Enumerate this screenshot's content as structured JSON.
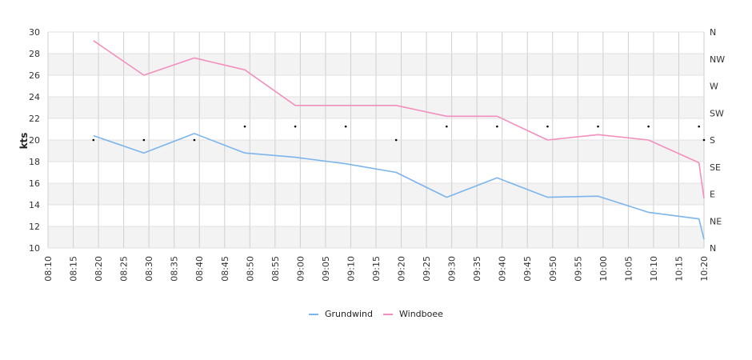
{
  "chart_data": {
    "type": "line",
    "ylabel": "kts",
    "ylim": [
      10,
      30
    ],
    "yticks": [
      10,
      12,
      14,
      16,
      18,
      20,
      22,
      24,
      26,
      28,
      30
    ],
    "xticks": [
      "08:10",
      "08:15",
      "08:20",
      "08:25",
      "08:30",
      "08:35",
      "08:40",
      "08:45",
      "08:50",
      "08:55",
      "09:00",
      "09:05",
      "09:10",
      "09:15",
      "09:20",
      "09:25",
      "09:30",
      "09:35",
      "09:40",
      "09:45",
      "09:50",
      "09:55",
      "10:00",
      "10:05",
      "10:10",
      "10:15",
      "10:20"
    ],
    "direction_axis": {
      "labels": [
        "N",
        "NE",
        "E",
        "SE",
        "S",
        "SW",
        "W",
        "NW",
        "N"
      ],
      "points": [
        {
          "time": "08:19",
          "dir": "S"
        },
        {
          "time": "08:29",
          "dir": "S"
        },
        {
          "time": "08:39",
          "dir": "S"
        },
        {
          "time": "08:49",
          "dir": "SSW"
        },
        {
          "time": "08:59",
          "dir": "SSW"
        },
        {
          "time": "09:09",
          "dir": "SSW"
        },
        {
          "time": "09:19",
          "dir": "S"
        },
        {
          "time": "09:29",
          "dir": "SSW"
        },
        {
          "time": "09:39",
          "dir": "SSW"
        },
        {
          "time": "09:49",
          "dir": "SSW"
        },
        {
          "time": "09:59",
          "dir": "SSW"
        },
        {
          "time": "10:09",
          "dir": "SSW"
        },
        {
          "time": "10:19",
          "dir": "SSW"
        },
        {
          "time": "10:20",
          "dir": "S"
        }
      ]
    },
    "series": [
      {
        "name": "Grundwind",
        "color": "#7cb5ec",
        "x": [
          "08:19",
          "08:29",
          "08:39",
          "08:49",
          "08:59",
          "09:09",
          "09:19",
          "09:29",
          "09:39",
          "09:49",
          "09:59",
          "10:09",
          "10:19",
          "10:20"
        ],
        "values": [
          20.4,
          18.8,
          20.6,
          18.8,
          18.4,
          17.8,
          17.0,
          14.7,
          16.5,
          14.7,
          14.8,
          13.3,
          12.7,
          10.8
        ]
      },
      {
        "name": "Windboee",
        "color": "#f28fbf",
        "x": [
          "08:19",
          "08:29",
          "08:39",
          "08:49",
          "08:59",
          "09:09",
          "09:19",
          "09:29",
          "09:39",
          "09:49",
          "09:59",
          "10:09",
          "10:19",
          "10:20"
        ],
        "values": [
          29.2,
          26.0,
          27.6,
          26.5,
          23.2,
          23.2,
          23.2,
          22.2,
          22.2,
          20.0,
          20.5,
          20.0,
          17.9,
          14.6
        ]
      }
    ],
    "grid": true,
    "legend_position": "bottom-center"
  }
}
